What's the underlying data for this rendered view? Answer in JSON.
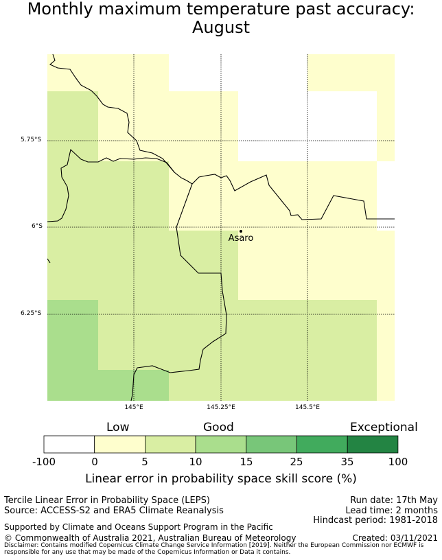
{
  "title_line1": "Monthly maximum temperature past accuracy:",
  "title_line2": "August",
  "map": {
    "lat_labels": [
      "5.75°S",
      "6°S",
      "6.25°S"
    ],
    "lon_labels": [
      "145°E",
      "145.25°E",
      "145.5°E"
    ],
    "place": "Asaro"
  },
  "colorbar": {
    "words": [
      "Low",
      "Good",
      "Exceptional"
    ],
    "ticks": [
      "-100",
      "0",
      "5",
      "10",
      "15",
      "25",
      "35",
      "100"
    ],
    "colors": [
      "#ffffff",
      "#fefecd",
      "#d9eea3",
      "#aade8d",
      "#78c679",
      "#41ab5d",
      "#238443"
    ],
    "label": "Linear error in probability space skill score (%)"
  },
  "footer": {
    "left1": "Tercile Linear Error in Probability Space (LEPS)",
    "left2": "Source: ACCESS-S2 and ERA5 Climate Reanalysis",
    "run_date": "Run date: 17th May",
    "lead_time": "Lead time: 2 months",
    "hindcast": "Hindcast period: 1981-2018",
    "support": "Supported by Climate and Oceans Support Program in the Pacific",
    "copyright": "© Commonwealth of Australia 2021, Australian Bureau of Meteorology",
    "created": "Created: 03/11/2021",
    "disclaimer": "Disclaimer: Contains modified Copernicus Climate Change Service Information [2019]. Neither the European Commission nor ECMWF is responsible for any use that may be made of the Copernicus Information or Data it contains."
  }
}
